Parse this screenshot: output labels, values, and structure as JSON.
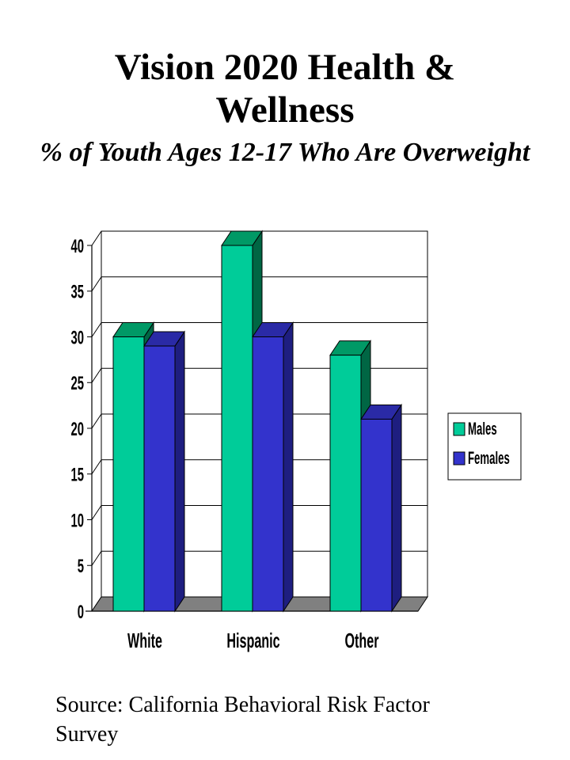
{
  "title": "Vision 2020 Health & Wellness",
  "subtitle": "% of Youth Ages 12-17 Who Are Overweight",
  "source": "Source: California Behavioral Risk Factor Survey",
  "colors": {
    "males_front": "#00CC99",
    "males_top": "#009966",
    "males_side": "#006644",
    "females_front": "#3333CC",
    "females_top": "#2A2AA6",
    "females_side": "#1E1E80",
    "floor": "#808080"
  },
  "chart_data": {
    "type": "bar",
    "categories": [
      "White",
      "Hispanic",
      "Other"
    ],
    "series": [
      {
        "name": "Males",
        "values": [
          30,
          40,
          28
        ]
      },
      {
        "name": "Females",
        "values": [
          29,
          30,
          21
        ]
      }
    ],
    "ylim": [
      0,
      40
    ],
    "yticks": [
      "0",
      "5",
      "10",
      "15",
      "20",
      "25",
      "30",
      "35",
      "40"
    ],
    "grid": true,
    "legend_position": "right",
    "title": "Vision 2020 Health & Wellness",
    "subtitle": "% of Youth Ages 12-17 Who Are Overweight",
    "xlabel": "",
    "ylabel": ""
  }
}
